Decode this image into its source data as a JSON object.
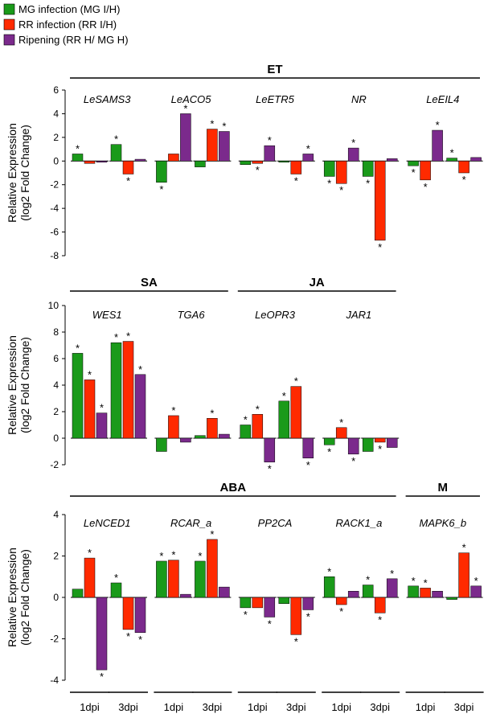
{
  "legend": [
    {
      "label": "MG infection (MG I/H)",
      "color": "#1a9a1a"
    },
    {
      "label": "RR infection (RR I/H)",
      "color": "#ff2a00"
    },
    {
      "label": "Ripening (RR H/ MG H)",
      "color": "#7b2a8c"
    }
  ],
  "y_axis_label_line1": "Relative Expression",
  "y_axis_label_line2": "(log2 Fold Change)",
  "time_labels": [
    "1dpi",
    "3dpi"
  ],
  "chart_data": [
    {
      "type": "bar",
      "title": "ET",
      "ylim": [
        -8,
        6
      ],
      "yticks": [
        6,
        4,
        2,
        0,
        -2,
        -4,
        -6,
        -8
      ],
      "series": [
        "MG infection (MG I/H)",
        "RR infection (RR I/H)",
        "Ripening (RR H/ MG H)"
      ],
      "groups": [
        {
          "label": "ET",
          "genes": [
            0,
            4
          ]
        }
      ],
      "genes": [
        {
          "name": "LeSAMS3",
          "d1": [
            0.6,
            -0.2,
            -0.1
          ],
          "s1": [
            true,
            false,
            false
          ],
          "d3": [
            1.4,
            -1.1,
            0.15
          ],
          "s3": [
            true,
            true,
            false
          ]
        },
        {
          "name": "LeACO5",
          "d1": [
            -1.8,
            0.6,
            4.0
          ],
          "s1": [
            true,
            false,
            true
          ],
          "d3": [
            -0.5,
            2.7,
            2.5
          ],
          "s3": [
            false,
            true,
            true
          ]
        },
        {
          "name": "LeETR5",
          "d1": [
            -0.3,
            -0.2,
            1.3
          ],
          "s1": [
            false,
            true,
            true
          ],
          "d3": [
            -0.1,
            -1.1,
            0.6
          ],
          "s3": [
            false,
            true,
            true
          ]
        },
        {
          "name": "NR",
          "d1": [
            -1.3,
            -1.9,
            1.1
          ],
          "s1": [
            true,
            true,
            true
          ],
          "d3": [
            -1.3,
            -6.7,
            0.2
          ],
          "s3": [
            true,
            true,
            false
          ]
        },
        {
          "name": "LeEIL4",
          "d1": [
            -0.4,
            -1.6,
            2.6
          ],
          "s1": [
            true,
            true,
            true
          ],
          "d3": [
            0.25,
            -1.0,
            0.3
          ],
          "s3": [
            true,
            true,
            false
          ]
        }
      ]
    },
    {
      "type": "bar",
      "title": "SA / JA",
      "ylim": [
        -2,
        10
      ],
      "yticks": [
        10,
        8,
        6,
        4,
        2,
        0,
        -2
      ],
      "series": [
        "MG infection (MG I/H)",
        "RR infection (RR I/H)",
        "Ripening (RR H/ MG H)"
      ],
      "groups": [
        {
          "label": "SA",
          "genes": [
            0,
            1
          ]
        },
        {
          "label": "JA",
          "genes": [
            2,
            3
          ]
        }
      ],
      "genes": [
        {
          "name": "WES1",
          "d1": [
            6.4,
            4.4,
            1.9
          ],
          "s1": [
            true,
            true,
            true
          ],
          "d3": [
            7.2,
            7.3,
            4.8
          ],
          "s3": [
            true,
            true,
            true
          ]
        },
        {
          "name": "TGA6",
          "d1": [
            -1.0,
            1.7,
            -0.3
          ],
          "s1": [
            false,
            true,
            false
          ],
          "d3": [
            0.2,
            1.5,
            0.3
          ],
          "s3": [
            false,
            true,
            false
          ]
        },
        {
          "name": "LeOPR3",
          "d1": [
            1.0,
            1.8,
            -1.8
          ],
          "s1": [
            true,
            true,
            true
          ],
          "d3": [
            2.8,
            3.9,
            -1.5
          ],
          "s3": [
            true,
            true,
            true
          ]
        },
        {
          "name": "JAR1",
          "d1": [
            -0.5,
            0.8,
            -1.2
          ],
          "s1": [
            true,
            true,
            true
          ],
          "d3": [
            -1.0,
            -0.3,
            -0.7
          ],
          "s3": [
            false,
            true,
            false
          ]
        }
      ]
    },
    {
      "type": "bar",
      "title": "ABA / M",
      "ylim": [
        -4,
        4
      ],
      "yticks": [
        4,
        2,
        0,
        -2,
        -4
      ],
      "series": [
        "MG infection (MG I/H)",
        "RR infection (RR I/H)",
        "Ripening (RR H/ MG H)"
      ],
      "groups": [
        {
          "label": "ABA",
          "genes": [
            0,
            3
          ]
        },
        {
          "label": "M",
          "genes": [
            4,
            4
          ]
        }
      ],
      "genes": [
        {
          "name": "LeNCED1",
          "d1": [
            0.4,
            1.9,
            -3.5
          ],
          "s1": [
            false,
            true,
            true
          ],
          "d3": [
            0.7,
            -1.55,
            -1.7
          ],
          "s3": [
            true,
            true,
            true
          ]
        },
        {
          "name": "RCAR_a",
          "d1": [
            1.75,
            1.8,
            0.15
          ],
          "s1": [
            true,
            true,
            false
          ],
          "d3": [
            1.75,
            2.8,
            0.5
          ],
          "s3": [
            true,
            true,
            false
          ]
        },
        {
          "name": "PP2CA",
          "d1": [
            -0.5,
            -0.5,
            -0.95
          ],
          "s1": [
            true,
            false,
            true
          ],
          "d3": [
            -0.3,
            -1.8,
            -0.6
          ],
          "s3": [
            false,
            true,
            true
          ]
        },
        {
          "name": "RACK1_a",
          "d1": [
            1.0,
            -0.35,
            0.3
          ],
          "s1": [
            true,
            true,
            false
          ],
          "d3": [
            0.6,
            -0.75,
            0.9
          ],
          "s3": [
            true,
            true,
            true
          ]
        },
        {
          "name": "MAPK6_b",
          "d1": [
            0.55,
            0.45,
            0.3
          ],
          "s1": [
            true,
            true,
            false
          ],
          "d3": [
            -0.1,
            2.15,
            0.55
          ],
          "s3": [
            false,
            true,
            true
          ]
        }
      ]
    }
  ]
}
